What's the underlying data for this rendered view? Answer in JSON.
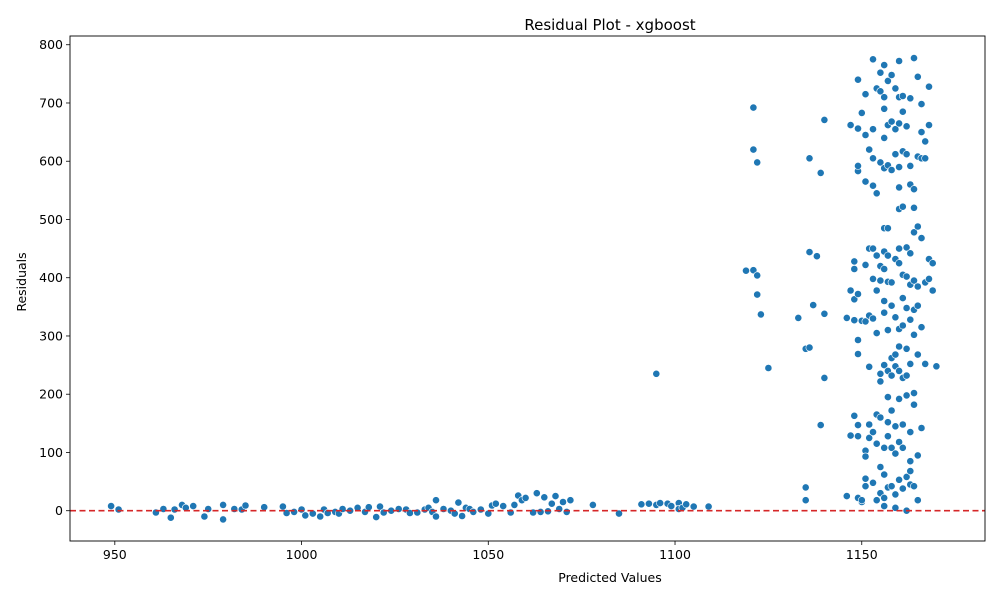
{
  "chart_data": {
    "type": "scatter",
    "title": "Residual Plot - xgboost",
    "xlabel": "Predicted Values",
    "ylabel": "Residuals",
    "xlim": [
      938,
      1183
    ],
    "ylim": [
      -52,
      815
    ],
    "xticks": [
      950,
      1000,
      1050,
      1100,
      1150
    ],
    "yticks": [
      0,
      100,
      200,
      300,
      400,
      500,
      600,
      700,
      800
    ],
    "grid": false,
    "reference_line": {
      "y": 0,
      "color": "#d62728",
      "style": "dashed"
    },
    "point_color": "#1f77b4",
    "points": [
      [
        949,
        8
      ],
      [
        951,
        2
      ],
      [
        961,
        -3
      ],
      [
        963,
        3
      ],
      [
        965,
        -12
      ],
      [
        966,
        2
      ],
      [
        968,
        10
      ],
      [
        969,
        5
      ],
      [
        971,
        8
      ],
      [
        974,
        -10
      ],
      [
        975,
        3
      ],
      [
        979,
        10
      ],
      [
        979,
        -15
      ],
      [
        982,
        3
      ],
      [
        984,
        2
      ],
      [
        985,
        9
      ],
      [
        990,
        6
      ],
      [
        995,
        7
      ],
      [
        996,
        -4
      ],
      [
        998,
        -2
      ],
      [
        1000,
        2
      ],
      [
        1001,
        -8
      ],
      [
        1003,
        -5
      ],
      [
        1005,
        -10
      ],
      [
        1006,
        2
      ],
      [
        1007,
        -4
      ],
      [
        1009,
        -2
      ],
      [
        1010,
        -5
      ],
      [
        1011,
        3
      ],
      [
        1013,
        0
      ],
      [
        1015,
        5
      ],
      [
        1017,
        -2
      ],
      [
        1018,
        6
      ],
      [
        1020,
        -11
      ],
      [
        1021,
        7
      ],
      [
        1022,
        -3
      ],
      [
        1024,
        0
      ],
      [
        1026,
        3
      ],
      [
        1028,
        2
      ],
      [
        1029,
        -4
      ],
      [
        1031,
        -3
      ],
      [
        1033,
        2
      ],
      [
        1034,
        5
      ],
      [
        1035,
        -2
      ],
      [
        1036,
        18
      ],
      [
        1036,
        -10
      ],
      [
        1038,
        3
      ],
      [
        1040,
        0
      ],
      [
        1041,
        -5
      ],
      [
        1042,
        14
      ],
      [
        1043,
        -9
      ],
      [
        1044,
        5
      ],
      [
        1045,
        3
      ],
      [
        1046,
        -2
      ],
      [
        1048,
        2
      ],
      [
        1050,
        -5
      ],
      [
        1051,
        9
      ],
      [
        1052,
        12
      ],
      [
        1054,
        8
      ],
      [
        1056,
        -3
      ],
      [
        1057,
        10
      ],
      [
        1058,
        26
      ],
      [
        1059,
        18
      ],
      [
        1060,
        22
      ],
      [
        1062,
        -3
      ],
      [
        1063,
        30
      ],
      [
        1064,
        -2
      ],
      [
        1065,
        23
      ],
      [
        1066,
        -1
      ],
      [
        1067,
        12
      ],
      [
        1068,
        25
      ],
      [
        1069,
        3
      ],
      [
        1070,
        15
      ],
      [
        1071,
        -2
      ],
      [
        1072,
        18
      ],
      [
        1078,
        10
      ],
      [
        1085,
        -5
      ],
      [
        1091,
        11
      ],
      [
        1093,
        12
      ],
      [
        1095,
        10
      ],
      [
        1096,
        13
      ],
      [
        1098,
        12
      ],
      [
        1099,
        8
      ],
      [
        1101,
        13
      ],
      [
        1101,
        3
      ],
      [
        1102,
        5
      ],
      [
        1103,
        11
      ],
      [
        1105,
        7
      ],
      [
        1109,
        7
      ],
      [
        1095,
        235
      ],
      [
        1119,
        412
      ],
      [
        1121,
        692
      ],
      [
        1121,
        620
      ],
      [
        1121,
        413
      ],
      [
        1122,
        404
      ],
      [
        1122,
        598
      ],
      [
        1122,
        371
      ],
      [
        1123,
        337
      ],
      [
        1125,
        245
      ],
      [
        1133,
        331
      ],
      [
        1135,
        40
      ],
      [
        1135,
        18
      ],
      [
        1135,
        278
      ],
      [
        1136,
        280
      ],
      [
        1136,
        605
      ],
      [
        1136,
        444
      ],
      [
        1137,
        353
      ],
      [
        1138,
        437
      ],
      [
        1139,
        580
      ],
      [
        1139,
        147
      ],
      [
        1140,
        671
      ],
      [
        1140,
        338
      ],
      [
        1140,
        228
      ],
      [
        1146,
        25
      ],
      [
        1146,
        331
      ],
      [
        1147,
        129
      ],
      [
        1147,
        662
      ],
      [
        1147,
        378
      ],
      [
        1148,
        163
      ],
      [
        1148,
        428
      ],
      [
        1148,
        415
      ],
      [
        1148,
        327
      ],
      [
        1148,
        363
      ],
      [
        1149,
        656
      ],
      [
        1149,
        372
      ],
      [
        1149,
        293
      ],
      [
        1149,
        269
      ],
      [
        1149,
        147
      ],
      [
        1149,
        128
      ],
      [
        1149,
        22
      ],
      [
        1149,
        583
      ],
      [
        1149,
        592
      ],
      [
        1149,
        740
      ],
      [
        1150,
        683
      ],
      [
        1150,
        326
      ],
      [
        1150,
        15
      ],
      [
        1150,
        18
      ],
      [
        1151,
        715
      ],
      [
        1151,
        565
      ],
      [
        1151,
        645
      ],
      [
        1151,
        422
      ],
      [
        1151,
        325
      ],
      [
        1151,
        103
      ],
      [
        1151,
        93
      ],
      [
        1151,
        55
      ],
      [
        1151,
        42
      ],
      [
        1152,
        620
      ],
      [
        1152,
        450
      ],
      [
        1152,
        335
      ],
      [
        1152,
        247
      ],
      [
        1152,
        148
      ],
      [
        1152,
        125
      ],
      [
        1153,
        775
      ],
      [
        1153,
        655
      ],
      [
        1153,
        605
      ],
      [
        1153,
        558
      ],
      [
        1153,
        450
      ],
      [
        1153,
        398
      ],
      [
        1153,
        330
      ],
      [
        1153,
        135
      ],
      [
        1153,
        48
      ],
      [
        1154,
        725
      ],
      [
        1154,
        545
      ],
      [
        1154,
        438
      ],
      [
        1154,
        378
      ],
      [
        1154,
        305
      ],
      [
        1154,
        165
      ],
      [
        1154,
        115
      ],
      [
        1154,
        18
      ],
      [
        1155,
        752
      ],
      [
        1155,
        720
      ],
      [
        1155,
        598
      ],
      [
        1155,
        420
      ],
      [
        1155,
        395
      ],
      [
        1155,
        235
      ],
      [
        1155,
        222
      ],
      [
        1155,
        160
      ],
      [
        1155,
        75
      ],
      [
        1155,
        30
      ],
      [
        1156,
        765
      ],
      [
        1156,
        710
      ],
      [
        1156,
        690
      ],
      [
        1156,
        640
      ],
      [
        1156,
        588
      ],
      [
        1156,
        485
      ],
      [
        1156,
        445
      ],
      [
        1156,
        415
      ],
      [
        1156,
        360
      ],
      [
        1156,
        340
      ],
      [
        1156,
        250
      ],
      [
        1156,
        108
      ],
      [
        1156,
        62
      ],
      [
        1156,
        22
      ],
      [
        1156,
        8
      ],
      [
        1157,
        738
      ],
      [
        1157,
        662
      ],
      [
        1157,
        593
      ],
      [
        1157,
        485
      ],
      [
        1157,
        438
      ],
      [
        1157,
        393
      ],
      [
        1157,
        310
      ],
      [
        1157,
        240
      ],
      [
        1157,
        195
      ],
      [
        1157,
        152
      ],
      [
        1157,
        128
      ],
      [
        1157,
        40
      ],
      [
        1158,
        748
      ],
      [
        1158,
        668
      ],
      [
        1158,
        585
      ],
      [
        1158,
        392
      ],
      [
        1158,
        352
      ],
      [
        1158,
        262
      ],
      [
        1158,
        232
      ],
      [
        1158,
        172
      ],
      [
        1158,
        108
      ],
      [
        1158,
        42
      ],
      [
        1159,
        725
      ],
      [
        1159,
        655
      ],
      [
        1159,
        612
      ],
      [
        1159,
        432
      ],
      [
        1159,
        332
      ],
      [
        1159,
        268
      ],
      [
        1159,
        248
      ],
      [
        1159,
        145
      ],
      [
        1159,
        98
      ],
      [
        1159,
        28
      ],
      [
        1159,
        5
      ],
      [
        1160,
        772
      ],
      [
        1160,
        710
      ],
      [
        1160,
        665
      ],
      [
        1160,
        590
      ],
      [
        1160,
        555
      ],
      [
        1160,
        518
      ],
      [
        1160,
        450
      ],
      [
        1160,
        425
      ],
      [
        1160,
        312
      ],
      [
        1160,
        282
      ],
      [
        1160,
        240
      ],
      [
        1160,
        192
      ],
      [
        1160,
        118
      ],
      [
        1160,
        53
      ],
      [
        1161,
        712
      ],
      [
        1161,
        685
      ],
      [
        1161,
        617
      ],
      [
        1161,
        522
      ],
      [
        1161,
        405
      ],
      [
        1161,
        365
      ],
      [
        1161,
        318
      ],
      [
        1161,
        228
      ],
      [
        1161,
        148
      ],
      [
        1161,
        108
      ],
      [
        1161,
        38
      ],
      [
        1162,
        660
      ],
      [
        1162,
        612
      ],
      [
        1162,
        452
      ],
      [
        1162,
        402
      ],
      [
        1162,
        348
      ],
      [
        1162,
        278
      ],
      [
        1162,
        232
      ],
      [
        1162,
        198
      ],
      [
        1162,
        58
      ],
      [
        1162,
        0
      ],
      [
        1163,
        708
      ],
      [
        1163,
        592
      ],
      [
        1163,
        560
      ],
      [
        1163,
        442
      ],
      [
        1163,
        388
      ],
      [
        1163,
        328
      ],
      [
        1163,
        252
      ],
      [
        1163,
        135
      ],
      [
        1163,
        85
      ],
      [
        1163,
        68
      ],
      [
        1163,
        45
      ],
      [
        1164,
        777
      ],
      [
        1164,
        552
      ],
      [
        1164,
        520
      ],
      [
        1164,
        478
      ],
      [
        1164,
        395
      ],
      [
        1164,
        345
      ],
      [
        1164,
        302
      ],
      [
        1164,
        202
      ],
      [
        1164,
        182
      ],
      [
        1164,
        42
      ],
      [
        1165,
        745
      ],
      [
        1165,
        608
      ],
      [
        1165,
        488
      ],
      [
        1165,
        385
      ],
      [
        1165,
        352
      ],
      [
        1165,
        268
      ],
      [
        1165,
        95
      ],
      [
        1165,
        18
      ],
      [
        1166,
        698
      ],
      [
        1166,
        650
      ],
      [
        1166,
        605
      ],
      [
        1166,
        468
      ],
      [
        1166,
        315
      ],
      [
        1166,
        142
      ],
      [
        1167,
        634
      ],
      [
        1167,
        605
      ],
      [
        1167,
        392
      ],
      [
        1167,
        252
      ],
      [
        1168,
        728
      ],
      [
        1168,
        432
      ],
      [
        1168,
        398
      ],
      [
        1168,
        662
      ],
      [
        1169,
        425
      ],
      [
        1169,
        378
      ],
      [
        1170,
        248
      ]
    ]
  }
}
